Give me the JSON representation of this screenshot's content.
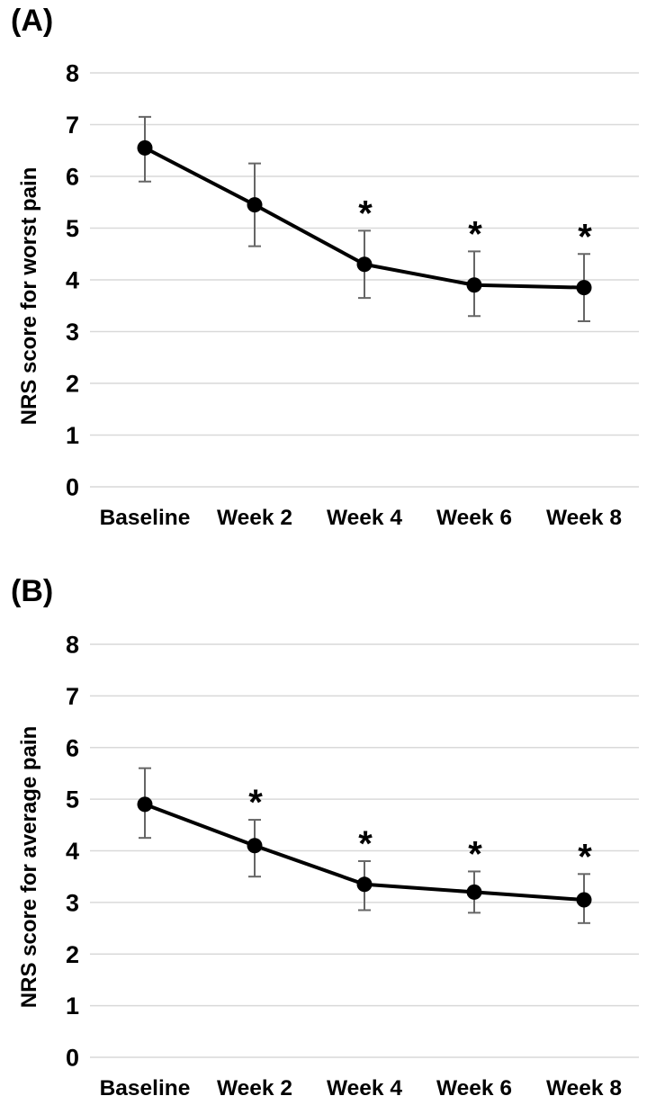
{
  "figure": {
    "background": "#ffffff",
    "panels": [
      {
        "label": "(A)"
      },
      {
        "label": "(B)"
      }
    ]
  },
  "chart_data": [
    {
      "type": "line",
      "panel_label": "(A)",
      "title": "",
      "xlabel": "",
      "ylabel": "NRS score for worst pain",
      "categories": [
        "Baseline",
        "Week 2",
        "Week 4",
        "Week 6",
        "Week 8"
      ],
      "series": [
        {
          "name": "NRS score for worst pain (mean with error bars)",
          "values": [
            6.55,
            5.45,
            4.3,
            3.9,
            3.85
          ],
          "error_upper": [
            7.15,
            6.25,
            4.95,
            4.55,
            4.5
          ],
          "error_lower": [
            5.9,
            4.65,
            3.65,
            3.3,
            3.2
          ]
        }
      ],
      "significance_marker": "*",
      "significant_categories": [
        "Week 4",
        "Week 6",
        "Week 8"
      ],
      "ylim": [
        0,
        8
      ],
      "yticks": [
        0,
        1,
        2,
        3,
        4,
        5,
        6,
        7,
        8
      ],
      "grid": true,
      "legend": "none"
    },
    {
      "type": "line",
      "panel_label": "(B)",
      "title": "",
      "xlabel": "",
      "ylabel": "NRS score for average pain",
      "categories": [
        "Baseline",
        "Week 2",
        "Week 4",
        "Week 6",
        "Week 8"
      ],
      "series": [
        {
          "name": "NRS score for average pain (mean with error bars)",
          "values": [
            4.9,
            4.1,
            3.35,
            3.2,
            3.05
          ],
          "error_upper": [
            5.6,
            4.6,
            3.8,
            3.6,
            3.55
          ],
          "error_lower": [
            4.25,
            3.5,
            2.85,
            2.8,
            2.6
          ]
        }
      ],
      "significance_marker": "*",
      "significant_categories": [
        "Week 2",
        "Week 4",
        "Week 6",
        "Week 8"
      ],
      "ylim": [
        0,
        8
      ],
      "yticks": [
        0,
        1,
        2,
        3,
        4,
        5,
        6,
        7,
        8
      ],
      "grid": true,
      "legend": "none"
    }
  ],
  "colors": {
    "line": "#000000",
    "marker": "#000000",
    "error_bar": "#666666",
    "gridline": "#d9d9d9",
    "text": "#000000",
    "background": "#ffffff"
  }
}
